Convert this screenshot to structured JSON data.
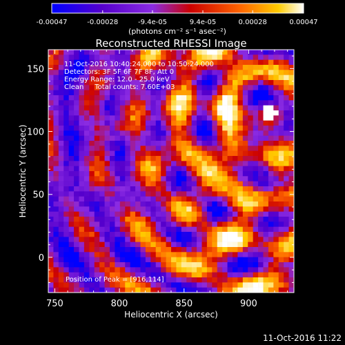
{
  "chart_data": {
    "type": "heatmap",
    "title": "Reconstructed RHESSI Image",
    "xlabel": "Heliocentric X (arcsec)",
    "ylabel": "Heliocentric Y (arcsec)",
    "xlim": [
      745,
      935
    ],
    "ylim": [
      -28,
      165
    ],
    "x_ticks": [
      "750",
      "800",
      "850",
      "900"
    ],
    "y_ticks": [
      "0",
      "50",
      "100",
      "150"
    ],
    "colorbar": {
      "range": [
        -0.00047,
        0.00047
      ],
      "tick_labels": [
        "-0.00047",
        "-0.00028",
        "-9.4e-05",
        "9.4e-05",
        "0.00028",
        "0.00047"
      ],
      "unit_label": "(photons cm⁻² s⁻¹ asec⁻²)",
      "colormap": [
        "#0000ff",
        "#5500cc",
        "#8a2be2",
        "#cc0000",
        "#ff6600",
        "#ffcc00",
        "#ffffff"
      ]
    },
    "annotations": [
      "11-Oct-2016 10:40:24.000 to 10:50:24.000",
      "Detectors: 3F 5F 6F 7F 8F, Att 0",
      "Energy Range: 12.0 - 25.0 keV",
      "Clean     Total counts: 7.60E+03",
      "Position of Peak = [916,114]"
    ],
    "peak": [
      916,
      114
    ]
  },
  "footer": {
    "timestamp": "11-Oct-2016 11:22"
  }
}
